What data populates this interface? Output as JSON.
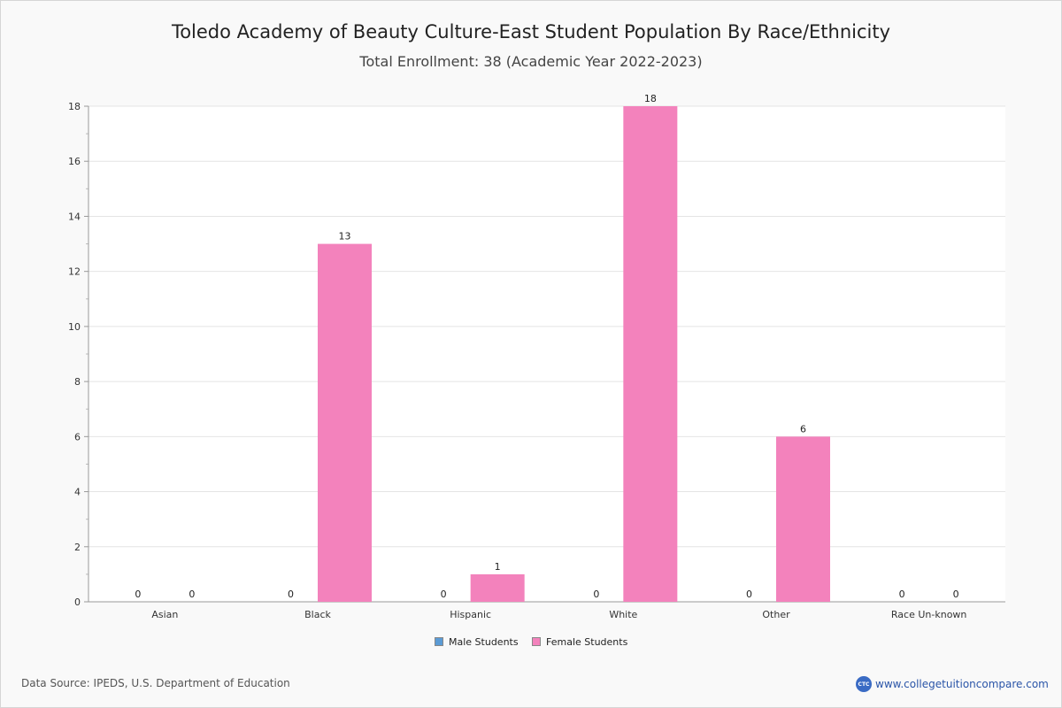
{
  "chart_data": {
    "type": "bar",
    "title": "Toledo Academy of Beauty Culture-East Student Population By Race/Ethnicity",
    "subtitle": "Total Enrollment: 38 (Academic Year 2022-2023)",
    "categories": [
      "Asian",
      "Black",
      "Hispanic",
      "White",
      "Other",
      "Race Un-known"
    ],
    "series": [
      {
        "name": "Male Students",
        "values": [
          0,
          0,
          0,
          0,
          0,
          0
        ],
        "color": "#5b9bd5"
      },
      {
        "name": "Female Students",
        "values": [
          0,
          13,
          1,
          18,
          6,
          0
        ],
        "color": "#f382bc"
      }
    ],
    "ylim": [
      0,
      18
    ],
    "yticks": [
      0,
      2,
      4,
      6,
      8,
      10,
      12,
      14,
      16,
      18
    ],
    "grid": true,
    "legend_position": "bottom"
  },
  "footer": {
    "source": "Data Source: IPEDS, U.S. Department of Education",
    "brand_logo": "CTC",
    "brand_url": "www.collegetuitioncompare.com"
  }
}
